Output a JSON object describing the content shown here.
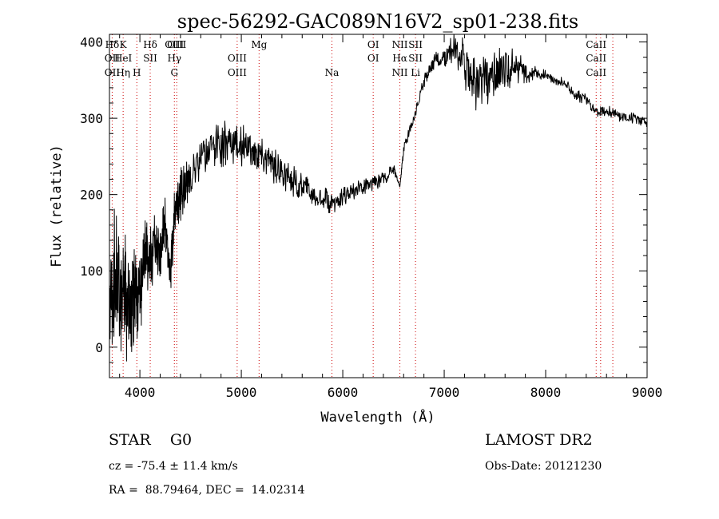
{
  "chart_data": {
    "type": "line",
    "title": "spec-56292-GAC089N16V2_sp01-238.fits",
    "xlabel": "Wavelength (Å)",
    "ylabel": "Flux (relative)",
    "xlim": [
      3700,
      9000
    ],
    "ylim": [
      -40,
      410
    ],
    "xticks": [
      4000,
      5000,
      6000,
      7000,
      8000,
      9000
    ],
    "yticks": [
      0,
      100,
      200,
      300,
      400
    ],
    "grid": false,
    "line_color": "#000000",
    "marker_color": "#cc0000",
    "series": [
      {
        "x": [
          3700,
          3750,
          3800,
          3850,
          3900,
          3950,
          4000,
          4050,
          4100,
          4150,
          4200,
          4250,
          4300,
          4350,
          4400,
          4450,
          4500,
          4600,
          4700,
          4800,
          4900,
          5000,
          5100,
          5200,
          5300,
          5400,
          5500,
          5600,
          5700,
          5800,
          5900,
          6000,
          6100,
          6200,
          6300,
          6400,
          6500,
          6563,
          6600,
          6700,
          6800,
          6900,
          7000,
          7100,
          7200,
          7300,
          7400,
          7500,
          7600,
          7700,
          7800,
          7900,
          8000,
          8100,
          8200,
          8300,
          8400,
          8500,
          8600,
          8700,
          8800,
          8900,
          9000
        ],
        "y": [
          40,
          100,
          60,
          80,
          20,
          90,
          60,
          120,
          110,
          140,
          130,
          160,
          90,
          190,
          200,
          210,
          220,
          250,
          260,
          265,
          270,
          265,
          260,
          250,
          240,
          230,
          220,
          210,
          200,
          195,
          190,
          195,
          205,
          210,
          215,
          220,
          235,
          210,
          260,
          300,
          350,
          375,
          380,
          395,
          375,
          340,
          350,
          360,
          365,
          370,
          360,
          360,
          355,
          350,
          345,
          330,
          325,
          310,
          310,
          305,
          300,
          300,
          295
        ],
        "noise": [
          70,
          90,
          90,
          80,
          80,
          70,
          60,
          50,
          45,
          45,
          40,
          40,
          35,
          35,
          35,
          35,
          35,
          30,
          30,
          30,
          30,
          28,
          28,
          26,
          24,
          22,
          22,
          20,
          18,
          18,
          16,
          14,
          12,
          12,
          10,
          10,
          8,
          0,
          8,
          8,
          10,
          12,
          15,
          20,
          35,
          40,
          38,
          35,
          30,
          25,
          15,
          10,
          8,
          8,
          8,
          8,
          8,
          8,
          8,
          8,
          8,
          8,
          8
        ]
      }
    ],
    "lines": [
      {
        "labels": [
          "Hδ",
          "OII",
          "OII"
        ],
        "wave": 3727
      },
      {
        "labels": [
          "K",
          "HeI",
          "Hη"
        ],
        "wave": 3835
      },
      {
        "labels": [
          "",
          "",
          "H"
        ],
        "wave": 3970
      },
      {
        "labels": [
          "Hδ",
          "SII",
          ""
        ],
        "wave": 4102
      },
      {
        "labels": [
          "OIII",
          "Hγ",
          "G"
        ],
        "wave": 4340
      },
      {
        "labels": [
          "OIII",
          "",
          ""
        ],
        "wave": 4363
      },
      {
        "labels": [
          "",
          "OIII",
          "OIII"
        ],
        "wave": 4959
      },
      {
        "labels": [
          "Mg",
          "",
          ""
        ],
        "wave": 5175
      },
      {
        "labels": [
          "",
          "",
          "Na"
        ],
        "wave": 5893
      },
      {
        "labels": [
          "OI",
          "OI",
          ""
        ],
        "wave": 6300
      },
      {
        "labels": [
          "NII",
          "Hα",
          "NII"
        ],
        "wave": 6563
      },
      {
        "labels": [
          "SII",
          "SII",
          "Li"
        ],
        "wave": 6717
      },
      {
        "labels": [
          "CaII",
          "CaII",
          "CaII"
        ],
        "wave": 8498
      },
      {
        "labels": [
          "",
          "",
          ""
        ],
        "wave": 8542
      },
      {
        "labels": [
          "",
          "",
          ""
        ],
        "wave": 8662
      }
    ]
  },
  "info": {
    "class": "STAR    G0",
    "survey": "LAMOST DR2",
    "cz": "cz = -75.4 ± 11.4 km/s",
    "obs_date": "Obs-Date: 20121230",
    "radec": "RA =  88.79464, DEC =  14.02314"
  }
}
